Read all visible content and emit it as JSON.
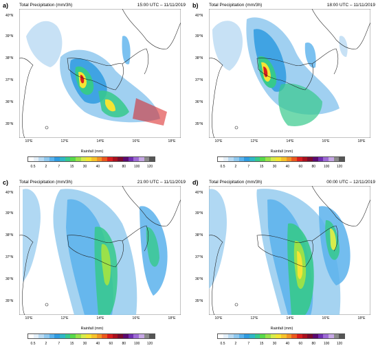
{
  "panels": [
    {
      "letter": "a)",
      "title": "Total Precipitation (mm/3h)",
      "time": "15:00 UTC – 11/11/2019"
    },
    {
      "letter": "b)",
      "title": "Total Precipitation (mm/3h)",
      "time": "18:00 UTC – 11/11/2019"
    },
    {
      "letter": "c)",
      "title": "Total Precipitation (mm/3h)",
      "time": "21:00 UTC – 11/11/2019"
    },
    {
      "letter": "d)",
      "title": "Total Precipitation (mm/3h)",
      "time": "00:00 UTC – 12/11/2019"
    }
  ],
  "map_axes": {
    "lat_labels": [
      "40°N",
      "39°N",
      "38°N",
      "37°N",
      "36°N",
      "35°N"
    ],
    "lon_labels": [
      "10°E",
      "12°E",
      "14°E",
      "16°E",
      "18°E"
    ]
  },
  "legend": {
    "title": "Rainfall  (mm)",
    "ticks": [
      "0.5",
      "2",
      "7",
      "15",
      "30",
      "40",
      "60",
      "80",
      "100",
      "120"
    ],
    "colors": [
      "#ffffff",
      "#e4eff8",
      "#b9daf2",
      "#8fc8ee",
      "#5ab2ec",
      "#2f9be0",
      "#2fb6c7",
      "#36c98c",
      "#58d84b",
      "#9ae14a",
      "#d6ec4c",
      "#f4e534",
      "#f6c22c",
      "#f29426",
      "#ea5a1e",
      "#d81e1e",
      "#a8111e",
      "#7b0a2e",
      "#5a0a6e",
      "#6f2fb0",
      "#9d6ad4",
      "#c5a6e4",
      "#8a8a8a",
      "#555555"
    ]
  },
  "colors": {
    "coastline": "#222222",
    "light_rain": "#b9daf2",
    "moderate_rain": "#5ab2ec",
    "heavy_rain": "#36c98c",
    "very_heavy_rain": "#f4e534",
    "extreme_rain": "#d81e1e"
  }
}
